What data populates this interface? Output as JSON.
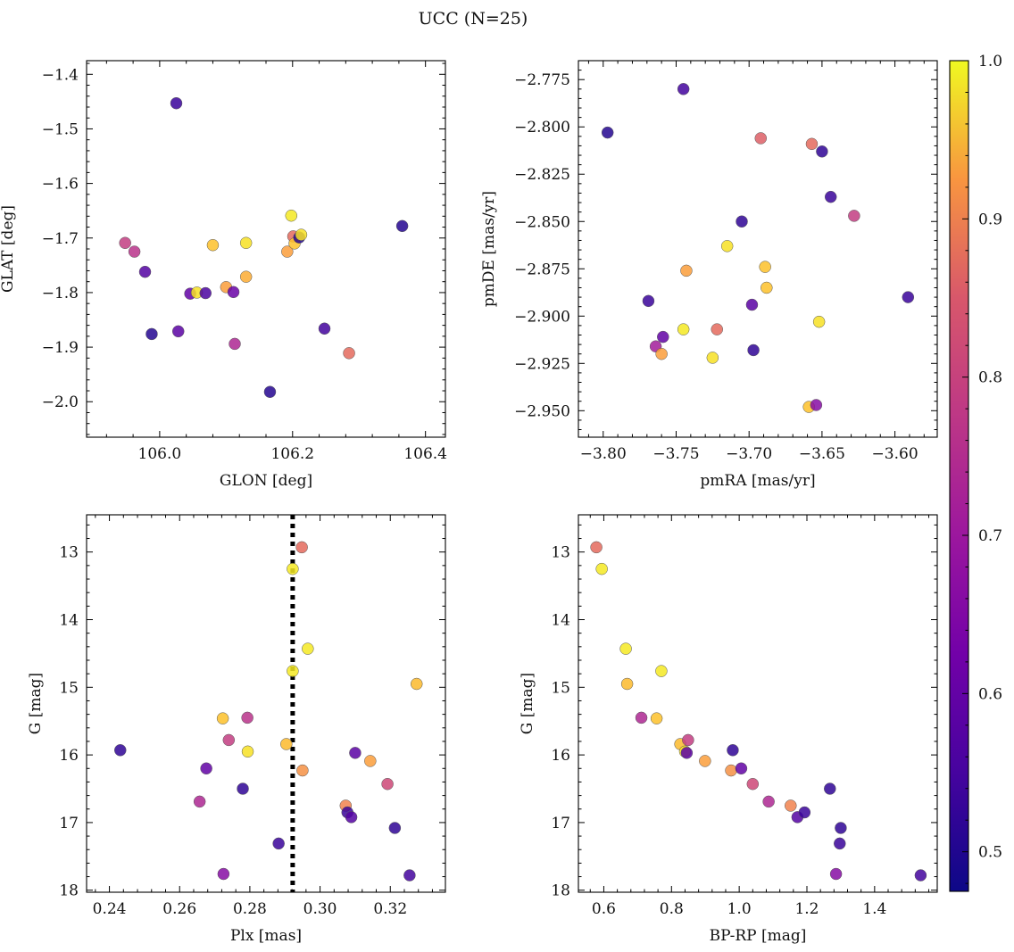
{
  "figure": {
    "title": "UCC (N=25)",
    "colorbar": {
      "min": 0.475,
      "max": 1.0,
      "ticks": [
        0.5,
        0.6,
        0.7,
        0.8,
        0.9,
        1.0
      ],
      "tick_labels": [
        "0.5",
        "0.6",
        "0.7",
        "0.8",
        "0.9",
        "1.0"
      ],
      "colormap": "plasma"
    }
  },
  "chart_data": [
    {
      "type": "scatter",
      "id": "glon-glat",
      "xlabel": "GLON [deg]",
      "ylabel": "GLAT [deg]",
      "xlim": [
        105.89,
        106.43
      ],
      "ylim": [
        -2.065,
        -1.375
      ],
      "y_inverted": false,
      "xticks": [
        106.0,
        106.2,
        106.4
      ],
      "xtick_labels": [
        "106.0",
        "106.2",
        "106.4"
      ],
      "yticks": [
        -2.0,
        -1.9,
        -1.8,
        -1.7,
        -1.6,
        -1.5,
        -1.4
      ],
      "ytick_labels": [
        "−2.0",
        "−1.9",
        "−1.8",
        "−1.7",
        "−1.6",
        "−1.5",
        "−1.4"
      ],
      "points": [
        {
          "x": 106.025,
          "y": -1.453,
          "c": 0.52
        },
        {
          "x": 106.365,
          "y": -1.678,
          "c": 0.5
        },
        {
          "x": 105.948,
          "y": -1.709,
          "c": 0.72
        },
        {
          "x": 105.962,
          "y": -1.725,
          "c": 0.7
        },
        {
          "x": 105.978,
          "y": -1.762,
          "c": 0.55
        },
        {
          "x": 105.988,
          "y": -1.876,
          "c": 0.5
        },
        {
          "x": 106.028,
          "y": -1.871,
          "c": 0.56
        },
        {
          "x": 106.046,
          "y": -1.802,
          "c": 0.57
        },
        {
          "x": 106.056,
          "y": -1.8,
          "c": 0.97
        },
        {
          "x": 106.069,
          "y": -1.801,
          "c": 0.54
        },
        {
          "x": 106.08,
          "y": -1.713,
          "c": 0.93
        },
        {
          "x": 106.1,
          "y": -1.79,
          "c": 0.88
        },
        {
          "x": 106.111,
          "y": -1.799,
          "c": 0.58
        },
        {
          "x": 106.113,
          "y": -1.894,
          "c": 0.68
        },
        {
          "x": 106.13,
          "y": -1.709,
          "c": 0.97
        },
        {
          "x": 106.13,
          "y": -1.771,
          "c": 0.9
        },
        {
          "x": 106.166,
          "y": -1.982,
          "c": 0.5
        },
        {
          "x": 106.192,
          "y": -1.725,
          "c": 0.88
        },
        {
          "x": 106.198,
          "y": -1.659,
          "c": 0.98
        },
        {
          "x": 106.201,
          "y": -1.697,
          "c": 0.8
        },
        {
          "x": 106.203,
          "y": -1.71,
          "c": 0.93
        },
        {
          "x": 106.21,
          "y": -1.699,
          "c": 0.5
        },
        {
          "x": 106.213,
          "y": -1.694,
          "c": 0.97
        },
        {
          "x": 106.248,
          "y": -1.866,
          "c": 0.53
        },
        {
          "x": 106.285,
          "y": -1.911,
          "c": 0.8
        }
      ]
    },
    {
      "type": "scatter",
      "id": "pmra-pmde",
      "xlabel": "pmRA [mas/yr]",
      "ylabel": "pmDE [mas/yr]",
      "xlim": [
        -3.817,
        -3.571
      ],
      "ylim": [
        -2.964,
        -2.765
      ],
      "y_inverted": false,
      "xticks": [
        -3.8,
        -3.75,
        -3.7,
        -3.65,
        -3.6
      ],
      "xtick_labels": [
        "−3.80",
        "−3.75",
        "−3.70",
        "−3.65",
        "−3.60"
      ],
      "yticks": [
        -2.95,
        -2.925,
        -2.9,
        -2.875,
        -2.85,
        -2.825,
        -2.8,
        -2.775
      ],
      "ytick_labels": [
        "−2.950",
        "−2.925",
        "−2.900",
        "−2.875",
        "−2.850",
        "−2.825",
        "−2.800",
        "−2.775"
      ],
      "points": [
        {
          "x": -3.797,
          "y": -2.803,
          "c": 0.5
        },
        {
          "x": -3.745,
          "y": -2.78,
          "c": 0.53
        },
        {
          "x": -3.769,
          "y": -2.892,
          "c": 0.52
        },
        {
          "x": -3.759,
          "y": -2.911,
          "c": 0.57
        },
        {
          "x": -3.764,
          "y": -2.916,
          "c": 0.66
        },
        {
          "x": -3.76,
          "y": -2.92,
          "c": 0.88
        },
        {
          "x": -3.745,
          "y": -2.907,
          "c": 0.98
        },
        {
          "x": -3.743,
          "y": -2.876,
          "c": 0.88
        },
        {
          "x": -3.725,
          "y": -2.922,
          "c": 0.97
        },
        {
          "x": -3.722,
          "y": -2.907,
          "c": 0.8
        },
        {
          "x": -3.715,
          "y": -2.863,
          "c": 0.97
        },
        {
          "x": -3.705,
          "y": -2.85,
          "c": 0.51
        },
        {
          "x": -3.698,
          "y": -2.894,
          "c": 0.56
        },
        {
          "x": -3.697,
          "y": -2.918,
          "c": 0.51
        },
        {
          "x": -3.692,
          "y": -2.806,
          "c": 0.78
        },
        {
          "x": -3.689,
          "y": -2.874,
          "c": 0.93
        },
        {
          "x": -3.688,
          "y": -2.885,
          "c": 0.93
        },
        {
          "x": -3.659,
          "y": -2.948,
          "c": 0.93
        },
        {
          "x": -3.657,
          "y": -2.809,
          "c": 0.8
        },
        {
          "x": -3.654,
          "y": -2.947,
          "c": 0.62
        },
        {
          "x": -3.652,
          "y": -2.903,
          "c": 0.97
        },
        {
          "x": -3.65,
          "y": -2.813,
          "c": 0.51
        },
        {
          "x": -3.644,
          "y": -2.837,
          "c": 0.52
        },
        {
          "x": -3.628,
          "y": -2.847,
          "c": 0.72
        },
        {
          "x": -3.591,
          "y": -2.89,
          "c": 0.52
        }
      ]
    },
    {
      "type": "scatter",
      "id": "plx-g",
      "xlabel": "Plx [mas]",
      "ylabel": "G [mag]",
      "xlim": [
        0.2335,
        0.3357
      ],
      "ylim": [
        12.45,
        18.03
      ],
      "y_inverted": true,
      "xticks": [
        0.24,
        0.26,
        0.28,
        0.3,
        0.32
      ],
      "xtick_labels": [
        "0.24",
        "0.26",
        "0.28",
        "0.30",
        "0.32"
      ],
      "yticks": [
        13,
        14,
        15,
        16,
        17,
        18
      ],
      "ytick_labels": [
        "13",
        "14",
        "15",
        "16",
        "17",
        "18"
      ],
      "vline": {
        "x": 0.2922,
        "style": "dotted"
      },
      "points": [
        {
          "x": 0.2431,
          "y": 15.93,
          "c": 0.51
        },
        {
          "x": 0.2657,
          "y": 16.69,
          "c": 0.68
        },
        {
          "x": 0.2676,
          "y": 16.2,
          "c": 0.57
        },
        {
          "x": 0.2723,
          "y": 15.46,
          "c": 0.93
        },
        {
          "x": 0.2725,
          "y": 17.76,
          "c": 0.62
        },
        {
          "x": 0.274,
          "y": 15.78,
          "c": 0.72
        },
        {
          "x": 0.278,
          "y": 16.5,
          "c": 0.51
        },
        {
          "x": 0.2793,
          "y": 15.45,
          "c": 0.7
        },
        {
          "x": 0.2794,
          "y": 15.95,
          "c": 0.97
        },
        {
          "x": 0.2882,
          "y": 17.31,
          "c": 0.52
        },
        {
          "x": 0.2904,
          "y": 15.84,
          "c": 0.92
        },
        {
          "x": 0.2922,
          "y": 13.25,
          "c": 0.98
        },
        {
          "x": 0.2922,
          "y": 14.76,
          "c": 0.98
        },
        {
          "x": 0.2948,
          "y": 12.93,
          "c": 0.8
        },
        {
          "x": 0.295,
          "y": 16.23,
          "c": 0.86
        },
        {
          "x": 0.2965,
          "y": 14.43,
          "c": 0.98
        },
        {
          "x": 0.3073,
          "y": 16.75,
          "c": 0.84
        },
        {
          "x": 0.3078,
          "y": 16.85,
          "c": 0.52
        },
        {
          "x": 0.3089,
          "y": 16.92,
          "c": 0.55
        },
        {
          "x": 0.31,
          "y": 15.97,
          "c": 0.56
        },
        {
          "x": 0.3143,
          "y": 16.09,
          "c": 0.88
        },
        {
          "x": 0.3192,
          "y": 16.43,
          "c": 0.74
        },
        {
          "x": 0.3213,
          "y": 17.08,
          "c": 0.51
        },
        {
          "x": 0.3255,
          "y": 17.78,
          "c": 0.53
        },
        {
          "x": 0.3275,
          "y": 14.95,
          "c": 0.92
        }
      ]
    },
    {
      "type": "scatter",
      "id": "bprp-g",
      "xlabel": "BP-RP [mag]",
      "ylabel": "G [mag]",
      "xlim": [
        0.525,
        1.585
      ],
      "ylim": [
        12.45,
        18.03
      ],
      "y_inverted": true,
      "xticks": [
        0.6,
        0.8,
        1.0,
        1.2,
        1.4
      ],
      "xtick_labels": [
        "0.6",
        "0.8",
        "1.0",
        "1.2",
        "1.4"
      ],
      "yticks": [
        13,
        14,
        15,
        16,
        17,
        18
      ],
      "ytick_labels": [
        "13",
        "14",
        "15",
        "16",
        "17",
        "18"
      ],
      "points": [
        {
          "x": 0.578,
          "y": 12.93,
          "c": 0.8
        },
        {
          "x": 0.594,
          "y": 13.25,
          "c": 0.98
        },
        {
          "x": 0.665,
          "y": 14.43,
          "c": 0.98
        },
        {
          "x": 0.669,
          "y": 14.95,
          "c": 0.92
        },
        {
          "x": 0.711,
          "y": 15.45,
          "c": 0.68
        },
        {
          "x": 0.756,
          "y": 15.46,
          "c": 0.93
        },
        {
          "x": 0.77,
          "y": 14.76,
          "c": 0.98
        },
        {
          "x": 0.826,
          "y": 15.84,
          "c": 0.92
        },
        {
          "x": 0.84,
          "y": 15.95,
          "c": 0.97
        },
        {
          "x": 0.845,
          "y": 15.97,
          "c": 0.56
        },
        {
          "x": 0.849,
          "y": 15.78,
          "c": 0.72
        },
        {
          "x": 0.899,
          "y": 16.09,
          "c": 0.88
        },
        {
          "x": 0.976,
          "y": 16.23,
          "c": 0.86
        },
        {
          "x": 0.981,
          "y": 15.93,
          "c": 0.51
        },
        {
          "x": 1.006,
          "y": 16.2,
          "c": 0.57
        },
        {
          "x": 1.04,
          "y": 16.43,
          "c": 0.74
        },
        {
          "x": 1.087,
          "y": 16.69,
          "c": 0.68
        },
        {
          "x": 1.152,
          "y": 16.75,
          "c": 0.84
        },
        {
          "x": 1.172,
          "y": 16.92,
          "c": 0.55
        },
        {
          "x": 1.193,
          "y": 16.85,
          "c": 0.52
        },
        {
          "x": 1.268,
          "y": 16.5,
          "c": 0.51
        },
        {
          "x": 1.286,
          "y": 17.76,
          "c": 0.62
        },
        {
          "x": 1.3,
          "y": 17.08,
          "c": 0.51
        },
        {
          "x": 1.297,
          "y": 17.31,
          "c": 0.52
        },
        {
          "x": 1.536,
          "y": 17.78,
          "c": 0.53
        }
      ]
    }
  ]
}
